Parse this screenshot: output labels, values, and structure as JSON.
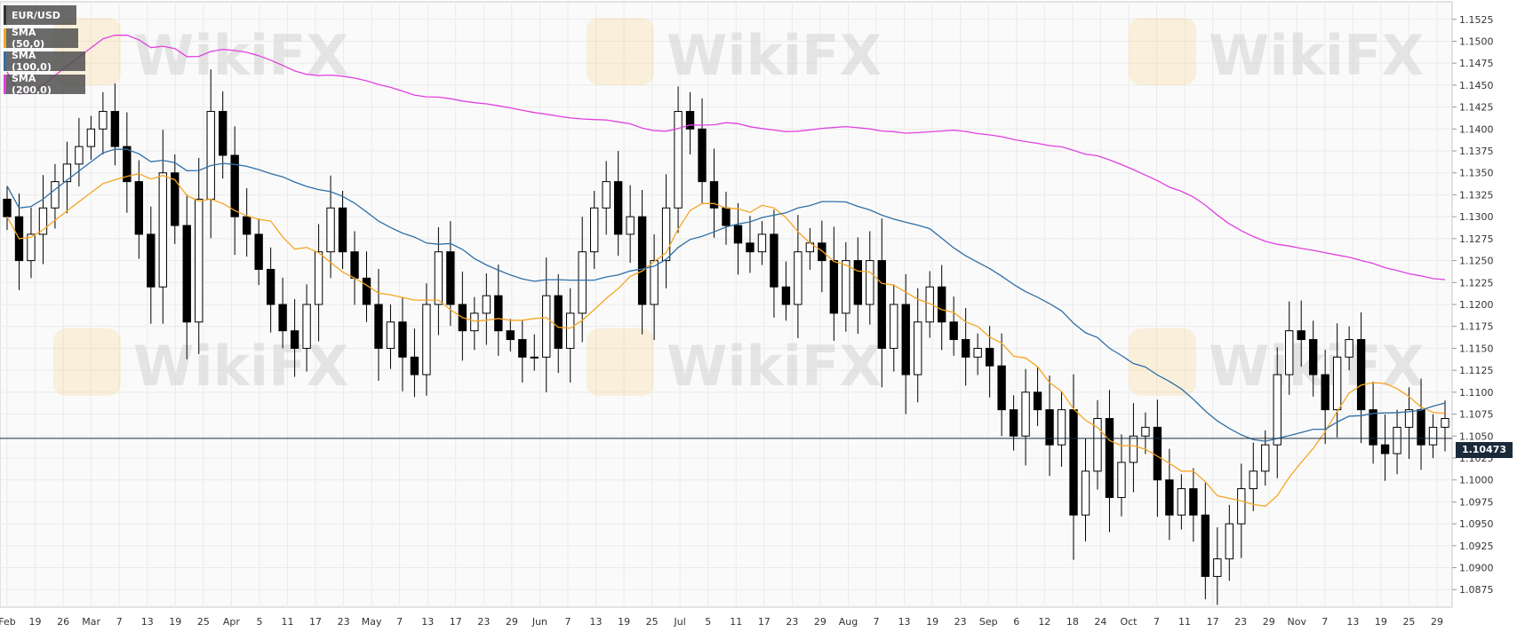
{
  "legend": [
    {
      "label": "EUR/USD",
      "color": "#000000"
    },
    {
      "label": "SMA (50,0)",
      "color": "#f5a623"
    },
    {
      "label": "SMA (100,0)",
      "color": "#2e6fa8"
    },
    {
      "label": "SMA (200,0)",
      "color": "#e040e0"
    }
  ],
  "watermark_text": "WikiFX",
  "current_price_label": "1.10473",
  "chart_data": {
    "type": "line",
    "title": "",
    "xlabel": "",
    "ylabel": "",
    "ylim": [
      1.0855,
      1.1545
    ],
    "grid": true,
    "y_ticks": [
      "1.0875",
      "1.0900",
      "1.0925",
      "1.0950",
      "1.0975",
      "1.1000",
      "1.1025",
      "1.1050",
      "1.1075",
      "1.1100",
      "1.1125",
      "1.1150",
      "1.1175",
      "1.1200",
      "1.1225",
      "1.1250",
      "1.1275",
      "1.1300",
      "1.1325",
      "1.1350",
      "1.1375",
      "1.1400",
      "1.1425",
      "1.1450",
      "1.1475",
      "1.1500",
      "1.1525"
    ],
    "x_ticks": [
      "Feb",
      "19",
      "26",
      "Mar",
      "7",
      "13",
      "19",
      "25",
      "Apr",
      "5",
      "11",
      "17",
      "23",
      "May",
      "7",
      "13",
      "17",
      "23",
      "29",
      "Jun",
      "7",
      "13",
      "19",
      "25",
      "Jul",
      "5",
      "11",
      "17",
      "23",
      "29",
      "Aug",
      "7",
      "13",
      "19",
      "23",
      "Sep",
      "6",
      "12",
      "18",
      "24",
      "Oct",
      "7",
      "11",
      "17",
      "23",
      "29",
      "Nov",
      "7",
      "13",
      "19",
      "25",
      "29"
    ],
    "current_price": 1.10473,
    "series": [
      {
        "name": "EUR/USD",
        "kind": "candlestick",
        "color": "#000000",
        "values": [
          1.13,
          1.125,
          1.128,
          1.131,
          1.134,
          1.136,
          1.138,
          1.14,
          1.142,
          1.138,
          1.134,
          1.128,
          1.122,
          1.135,
          1.129,
          1.118,
          1.132,
          1.142,
          1.137,
          1.13,
          1.128,
          1.124,
          1.12,
          1.117,
          1.115,
          1.12,
          1.126,
          1.131,
          1.126,
          1.123,
          1.12,
          1.115,
          1.118,
          1.114,
          1.112,
          1.12,
          1.126,
          1.12,
          1.117,
          1.119,
          1.121,
          1.117,
          1.116,
          1.114,
          1.114,
          1.121,
          1.115,
          1.119,
          1.126,
          1.131,
          1.134,
          1.128,
          1.13,
          1.12,
          1.125,
          1.131,
          1.142,
          1.14,
          1.134,
          1.131,
          1.129,
          1.127,
          1.126,
          1.128,
          1.122,
          1.12,
          1.126,
          1.127,
          1.125,
          1.119,
          1.125,
          1.12,
          1.125,
          1.115,
          1.12,
          1.112,
          1.118,
          1.122,
          1.118,
          1.116,
          1.114,
          1.115,
          1.113,
          1.108,
          1.105,
          1.11,
          1.108,
          1.104,
          1.108,
          1.096,
          1.101,
          1.107,
          1.098,
          1.102,
          1.105,
          1.106,
          1.1,
          1.096,
          1.099,
          1.096,
          1.089,
          1.091,
          1.095,
          1.099,
          1.101,
          1.104,
          1.112,
          1.117,
          1.116,
          1.112,
          1.108,
          1.114,
          1.116,
          1.108,
          1.104,
          1.103,
          1.106,
          1.108,
          1.104,
          1.106,
          1.107
        ]
      }
    ]
  }
}
